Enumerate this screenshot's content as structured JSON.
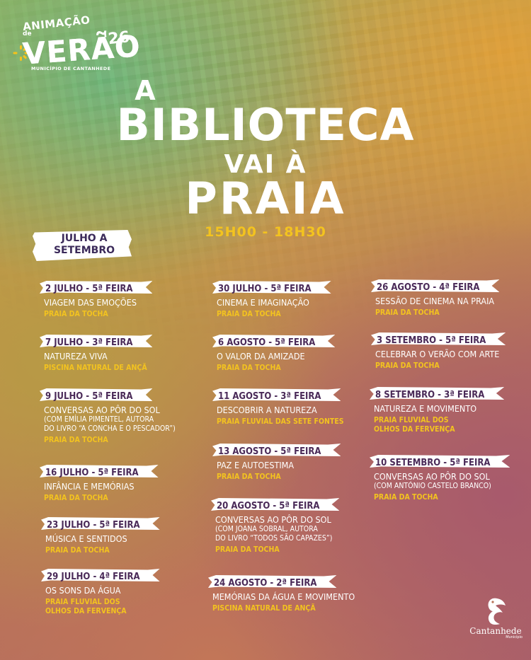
{
  "logo": {
    "line1": "ANIMAÇÃO",
    "line2": "de",
    "line3": "VERÃO",
    "year": "'26",
    "municipality": "MUNICÍPIO DE CANTANHEDE"
  },
  "headline": {
    "a": "A",
    "biblioteca": "BIBLIOTECA",
    "vai": "VAI À",
    "praia": "PRAIA",
    "time": "15H00 - 18H30"
  },
  "period": {
    "line1": "JULHO A",
    "line2": "SETEMBRO"
  },
  "colors": {
    "accent_yellow": "#f3c31f",
    "date_text": "#4a2a58",
    "title_text": "#ffffff"
  },
  "events": [
    {
      "date": "2 JULHO - 5ª FEIRA",
      "title": "VIAGEM DAS EMOÇÕES",
      "location": "PRAIA DA TOCHA"
    },
    {
      "date": "7 JULHO - 3ª FEIRA",
      "title": "NATUREZA VIVA",
      "location": "PISCINA NATURAL DE ANÇÃ"
    },
    {
      "date": "9 JULHO - 5ª FEIRA",
      "title": "CONVERSAS AO PÔR DO SOL",
      "sub1": "(COM EMÍLIA PIMENTEL, AUTORA",
      "sub2": "DO LIVRO “A CONCHA E O PESCADOR”)",
      "location": "PRAIA DA TOCHA"
    },
    {
      "date": "16 JULHO - 5ª FEIRA",
      "title": "INFÂNCIA E MEMÓRIAS",
      "location": "PRAIA DA TOCHA"
    },
    {
      "date": "23 JULHO - 5ª FEIRA",
      "title": "MÚSICA E SENTIDOS",
      "location": "PRAIA DA TOCHA"
    },
    {
      "date": "29 JULHO - 4ª FEIRA",
      "title": "OS SONS DA ÁGUA",
      "location": "PRAIA FLUVIAL DOS",
      "location2": "OLHOS DA FERVENÇA"
    },
    {
      "date": "30 JULHO - 5ª FEIRA",
      "title": "CINEMA E IMAGINAÇÃO",
      "location": "PRAIA DA TOCHA"
    },
    {
      "date": "6 AGOSTO - 5ª FEIRA",
      "title": "O VALOR DA AMIZADE",
      "location": "PRAIA DA TOCHA"
    },
    {
      "date": "11 AGOSTO - 3ª FEIRA",
      "title": "DESCOBRIR A NATUREZA",
      "location": "PRAIA FLUVIAL DAS SETE FONTES"
    },
    {
      "date": "13 AGOSTO - 5ª FEIRA",
      "title": "PAZ E AUTOESTIMA",
      "location": "PRAIA DA TOCHA"
    },
    {
      "date": "20 AGOSTO - 5ª FEIRA",
      "title": "CONVERSAS AO PÔR DO SOL",
      "sub1": "(COM JOANA SOBRAL, AUTORA",
      "sub2": "DO LIVRO “TODOS SÃO CAPAZES”)",
      "location": "PRAIA DA TOCHA"
    },
    {
      "date": "24 AGOSTO - 2ª FEIRA",
      "title": "MEMÓRIAS DA ÁGUA E MOVIMENTO",
      "location": "PISCINA NATURAL DE ANÇÃ"
    },
    {
      "date": "26 AGOSTO - 4ª FEIRA",
      "title": "SESSÃO DE CINEMA NA PRAIA",
      "location": "PRAIA DA TOCHA"
    },
    {
      "date": "3 SETEMBRO - 5ª FEIRA",
      "title": "CELEBRAR O VERÃO COM ARTE",
      "location": "PRAIA DA TOCHA"
    },
    {
      "date": "8 SETEMBRO - 3ª FEIRA",
      "title": "NATUREZA E MOVIMENTO",
      "location": "PRAIA FLUVIAL DOS",
      "location2": "OLHOS DA FERVENÇA"
    },
    {
      "date": "10 SETEMBRO - 5ª FEIRA",
      "title": "CONVERSAS AO PÔR DO SOL",
      "sub1": "(COM ANTÓNIO CASTELO BRANCO)",
      "location": "PRAIA DA TOCHA"
    }
  ],
  "footer": {
    "name": "Cantanhede",
    "small": "Município",
    "icon": "pelican-icon"
  }
}
